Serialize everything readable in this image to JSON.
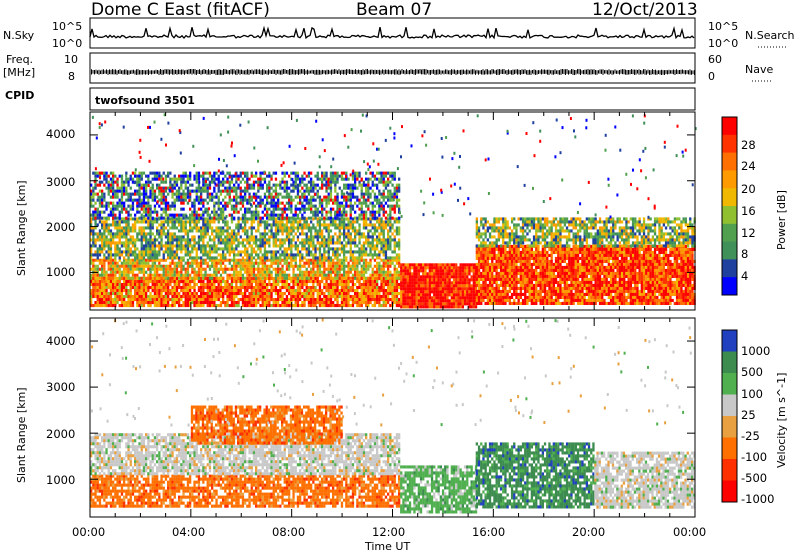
{
  "header": {
    "station": "Dome C East (fitACF)",
    "beam": "Beam 07",
    "date": "12/Oct/2013"
  },
  "top_panels": {
    "nsky_label": "N.Sky",
    "nsky_ticks": [
      "10^5",
      "10^0"
    ],
    "nsearch_label": "N.Search",
    "nsearch_ticks": [
      "10^5",
      "10^0"
    ],
    "freq_label_1": "Freq.",
    "freq_label_2": "[MHz]",
    "freq_ticks": [
      "10",
      "8"
    ],
    "nave_label": "Nave",
    "nave_ticks": [
      "60",
      "0"
    ],
    "cpid_label": "CPID",
    "cpid_value": "twofsound 3501"
  },
  "chart_data": [
    {
      "type": "heatmap",
      "ylabel": "Slant Range [km]",
      "yticks": [
        "4000",
        "3000",
        "2000",
        "1000"
      ],
      "ylim": [
        180,
        4500
      ],
      "xlim": [
        0,
        24
      ],
      "colorbar_label": "Power [dB]",
      "colorbar_ticks": [
        "28",
        "24",
        "20",
        "16",
        "12",
        "8",
        "4"
      ],
      "colorbar_colors": [
        "#ff0000",
        "#ff3300",
        "#ff7000",
        "#ff9a00",
        "#f0b800",
        "#90c030",
        "#50a050",
        "#40905a",
        "#2040a0",
        "#0000ff"
      ],
      "bands": [
        {
          "x": [
            0,
            12.3
          ],
          "range": [
            300,
            900
          ],
          "level": 0.75
        },
        {
          "x": [
            0,
            12.3
          ],
          "range": [
            900,
            1300
          ],
          "level": 0.6
        },
        {
          "x": [
            0,
            12.3
          ],
          "range": [
            1300,
            2200
          ],
          "level": 0.4
        },
        {
          "x": [
            0,
            12.3
          ],
          "range": [
            2200,
            3200
          ],
          "level": 0.2
        },
        {
          "x": [
            12.3,
            15.3
          ],
          "range": [
            250,
            1200
          ],
          "level": 0.95
        },
        {
          "x": [
            15.3,
            24
          ],
          "range": [
            300,
            1600
          ],
          "level": 0.85
        },
        {
          "x": [
            15.3,
            24
          ],
          "range": [
            1600,
            2200
          ],
          "level": 0.4
        }
      ]
    },
    {
      "type": "heatmap",
      "xlabel": "Time UT",
      "ylabel": "Slant Range [km]",
      "yticks": [
        "4000",
        "3000",
        "2000",
        "1000"
      ],
      "xticks": [
        "00:00",
        "04:00",
        "08:00",
        "12:00",
        "16:00",
        "20:00",
        "00:00"
      ],
      "ylim": [
        180,
        4500
      ],
      "xlim": [
        0,
        24
      ],
      "colorbar_label": "Velocity [m s^-1]",
      "colorbar_ticks": [
        "1000",
        "500",
        "100",
        "25",
        "-25",
        "-100",
        "-500",
        "-1000"
      ],
      "colorbar_colors": [
        "#2040c0",
        "#3c8c50",
        "#50b050",
        "#c8c8c8",
        "#e8a040",
        "#ff7000",
        "#ff3000",
        "#ff0000"
      ],
      "bands": [
        {
          "x": [
            0,
            12.3
          ],
          "range": [
            400,
            1100
          ],
          "velocity": -100
        },
        {
          "x": [
            0,
            12.3
          ],
          "range": [
            1100,
            2000
          ],
          "velocity": 25
        },
        {
          "x": [
            4,
            10
          ],
          "range": [
            1800,
            2600
          ],
          "velocity": -100
        },
        {
          "x": [
            12.3,
            15.3
          ],
          "range": [
            300,
            1300
          ],
          "velocity": 100
        },
        {
          "x": [
            15.3,
            20
          ],
          "range": [
            400,
            1800
          ],
          "velocity": 500
        },
        {
          "x": [
            20,
            24
          ],
          "range": [
            400,
            1600
          ],
          "velocity": 25
        }
      ]
    }
  ]
}
